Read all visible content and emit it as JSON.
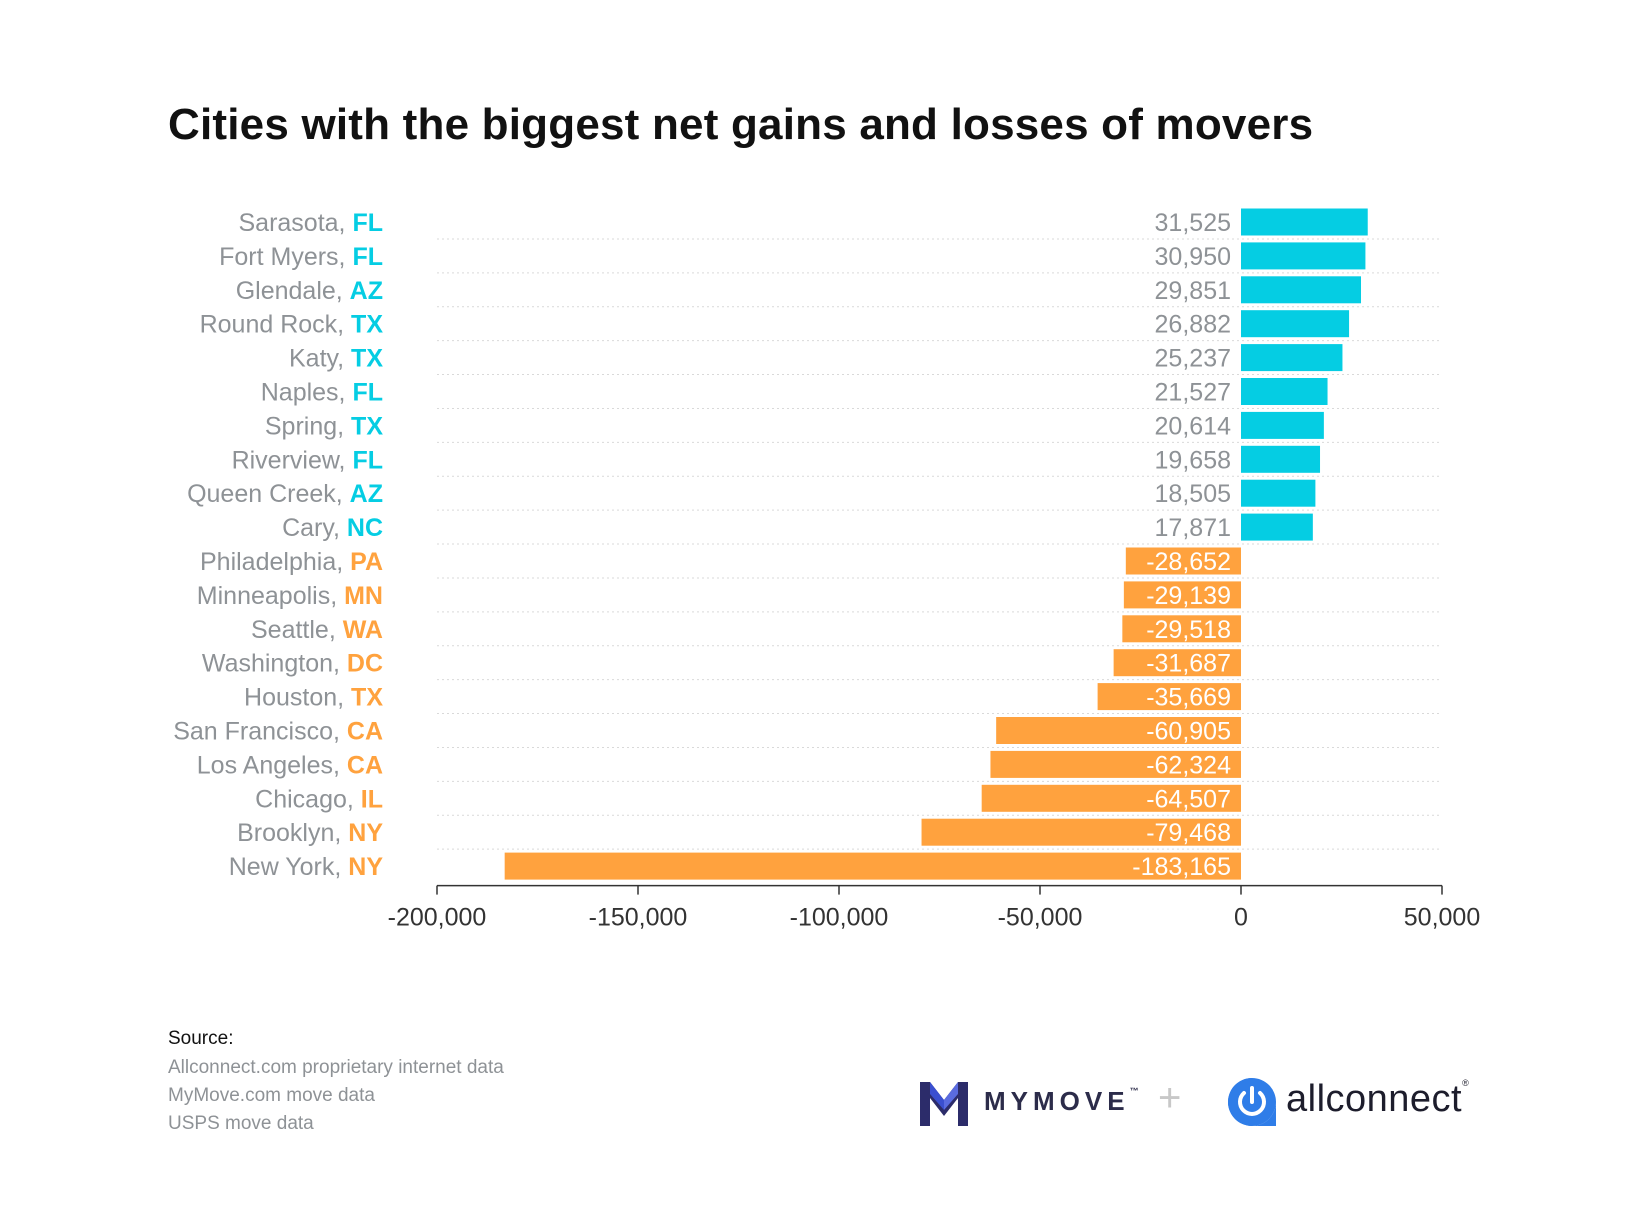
{
  "title": "Cities with the biggest net gains and losses of movers",
  "colors": {
    "gain": "#05cde3",
    "loss": "#ffa23e",
    "city_text": "#8e9296",
    "grid": "#d9d9d9"
  },
  "chart_data": {
    "type": "bar",
    "orientation": "horizontal",
    "title": "Cities with the biggest net gains and losses of movers",
    "xlabel": "",
    "ylabel": "",
    "xlim": [
      -200000,
      50000
    ],
    "xticks": [
      -200000,
      -150000,
      -100000,
      -50000,
      0,
      50000
    ],
    "xtick_labels": [
      "-200,000",
      "-150,000",
      "-100,000",
      "-50,000",
      "0",
      "50,000"
    ],
    "grid": "dotted horizontal",
    "categories": [
      {
        "city": "Sarasota",
        "state": "FL",
        "value": 31525,
        "label": "31,525"
      },
      {
        "city": "Fort Myers",
        "state": "FL",
        "value": 30950,
        "label": "30,950"
      },
      {
        "city": "Glendale",
        "state": "AZ",
        "value": 29851,
        "label": "29,851"
      },
      {
        "city": "Round Rock",
        "state": "TX",
        "value": 26882,
        "label": "26,882"
      },
      {
        "city": "Katy",
        "state": "TX",
        "value": 25237,
        "label": "25,237"
      },
      {
        "city": "Naples",
        "state": "FL",
        "value": 21527,
        "label": "21,527"
      },
      {
        "city": "Spring",
        "state": "TX",
        "value": 20614,
        "label": "20,614"
      },
      {
        "city": "Riverview",
        "state": "FL",
        "value": 19658,
        "label": "19,658"
      },
      {
        "city": "Queen Creek",
        "state": "AZ",
        "value": 18505,
        "label": "18,505"
      },
      {
        "city": "Cary",
        "state": "NC",
        "value": 17871,
        "label": "17,871"
      },
      {
        "city": "Philadelphia",
        "state": "PA",
        "value": -28652,
        "label": "-28,652"
      },
      {
        "city": "Minneapolis",
        "state": "MN",
        "value": -29139,
        "label": "-29,139"
      },
      {
        "city": "Seattle",
        "state": "WA",
        "value": -29518,
        "label": "-29,518"
      },
      {
        "city": "Washington",
        "state": "DC",
        "value": -31687,
        "label": "-31,687"
      },
      {
        "city": "Houston",
        "state": "TX",
        "value": -35669,
        "label": "-35,669"
      },
      {
        "city": "San Francisco",
        "state": "CA",
        "value": -60905,
        "label": "-60,905"
      },
      {
        "city": "Los Angeles",
        "state": "CA",
        "value": -62324,
        "label": "-62,324"
      },
      {
        "city": "Chicago",
        "state": "IL",
        "value": -64507,
        "label": "-64,507"
      },
      {
        "city": "Brooklyn",
        "state": "NY",
        "value": -79468,
        "label": "-79,468"
      },
      {
        "city": "New York",
        "state": "NY",
        "value": -183165,
        "label": "-183,165"
      }
    ]
  },
  "source": {
    "title": "Source:",
    "lines": [
      "Allconnect.com proprietary internet data",
      "MyMove.com move data",
      "USPS move data"
    ]
  },
  "logos": {
    "mymove": "MYMOVE",
    "mymove_tm": "™",
    "plus": "+",
    "allconnect": "allconnect",
    "allconnect_reg": "®"
  }
}
